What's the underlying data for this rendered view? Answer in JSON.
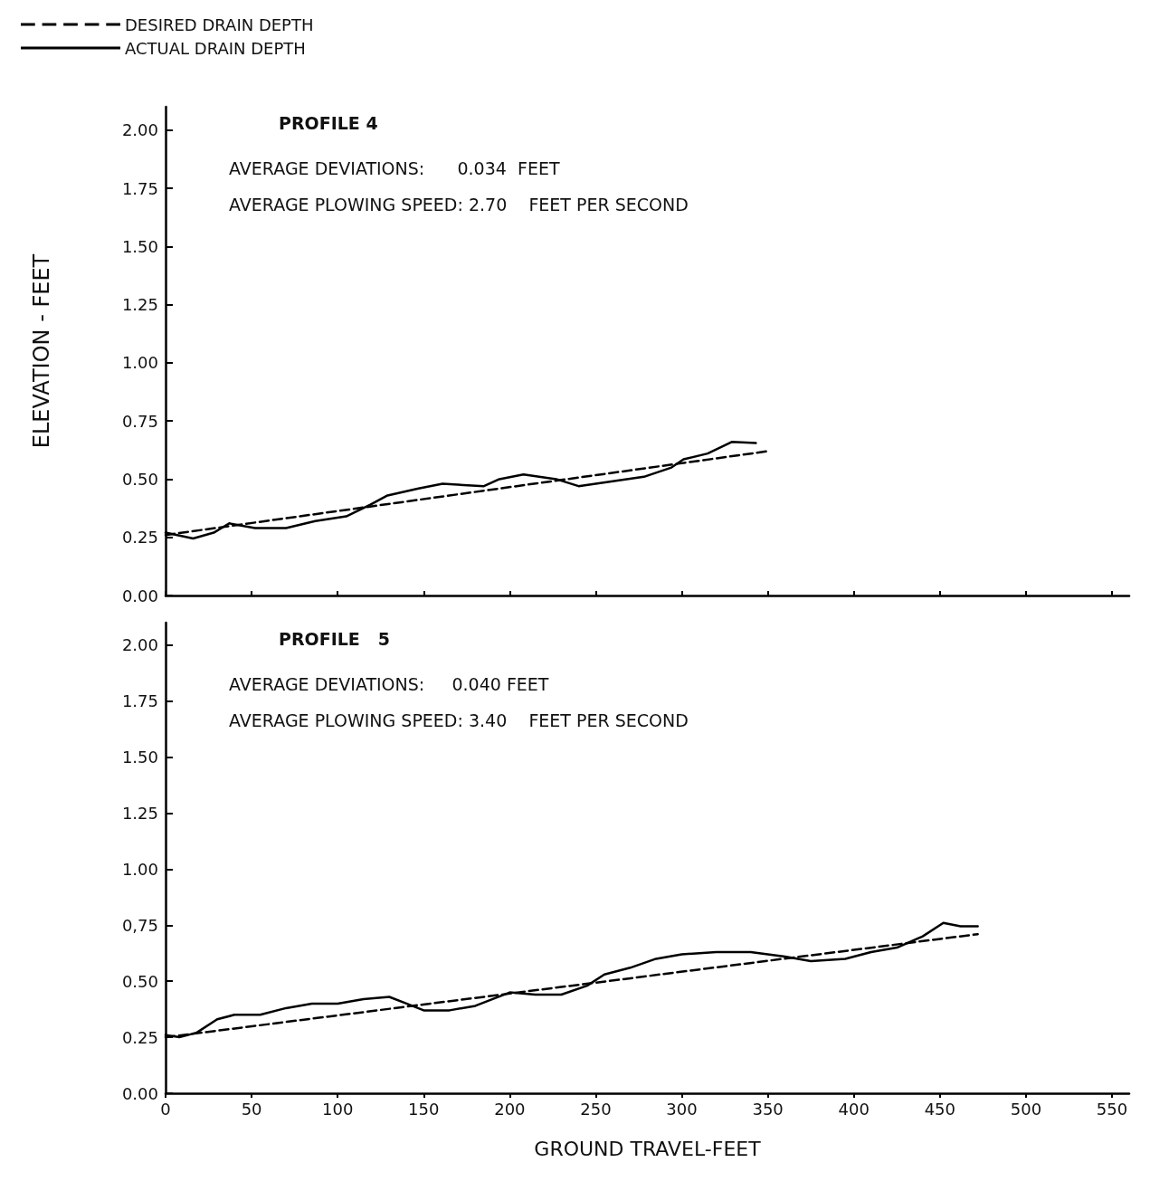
{
  "chart_data": [
    {
      "type": "line",
      "annotations": [
        "PROFILE 4",
        "AVERAGE DEVIATIONS:      0.034  FEET",
        "AVERAGE PLOWING SPEED: 2.70    FEET PER SECOND"
      ],
      "ylabel": "ELEVATION - FEET",
      "legend": "top left",
      "tick_labels": "y",
      "grid": false,
      "marker": "none",
      "xlim": [
        0,
        560
      ],
      "xticks": [
        0,
        50,
        100,
        150,
        200,
        250,
        300,
        350,
        400,
        450,
        500,
        550
      ],
      "ylim": [
        0,
        2.1
      ],
      "yticks": [
        {
          "value": 0,
          "label": "0.00"
        },
        {
          "value": 0.25,
          "label": "0.25"
        },
        {
          "value": 0.5,
          "label": "0.50"
        },
        {
          "value": 0.75,
          "label": "0.75"
        },
        {
          "value": 1,
          "label": "1.00"
        },
        {
          "value": 1.25,
          "label": "1.25"
        },
        {
          "value": 1.5,
          "label": "1.50"
        },
        {
          "value": 1.75,
          "label": "1.75"
        },
        {
          "value": 2,
          "label": "2.00"
        }
      ],
      "series": [
        {
          "name": "DESIRED DRAIN DEPTH",
          "color": "#000000",
          "line_style": "dashed",
          "x": [
            0,
            350
          ],
          "values": [
            0.26,
            0.62
          ]
        },
        {
          "name": "ACTUAL DRAIN DEPTH",
          "color": "#000000",
          "line_style": "solid",
          "x": [
            0,
            16,
            28,
            37,
            52,
            70,
            87,
            105,
            119,
            129,
            147,
            161,
            185,
            194,
            208,
            227,
            240,
            259,
            278,
            294,
            301,
            315,
            329,
            343
          ],
          "values": [
            0.27,
            0.245,
            0.27,
            0.31,
            0.29,
            0.29,
            0.32,
            0.34,
            0.39,
            0.43,
            0.46,
            0.48,
            0.47,
            0.5,
            0.52,
            0.5,
            0.47,
            0.49,
            0.51,
            0.55,
            0.585,
            0.61,
            0.66,
            0.655
          ]
        }
      ]
    },
    {
      "type": "line",
      "annotations": [
        "PROFILE   5",
        "AVERAGE DEVIATIONS:     0.040 FEET",
        "AVERAGE PLOWING SPEED: 3.40    FEET PER SECOND"
      ],
      "xlabel": "GROUND TRAVEL-FEET",
      "grid": false,
      "marker": "none",
      "xlim": [
        0,
        560
      ],
      "xticks": [
        0,
        50,
        100,
        150,
        200,
        250,
        300,
        350,
        400,
        450,
        500,
        550
      ],
      "ylim": [
        0,
        2.1
      ],
      "yticks": [
        {
          "value": 0,
          "label": "0.00"
        },
        0.25,
        {
          "value": 0.5,
          "label": "0.50"
        },
        {
          "value": 0.75,
          "label": "0,75"
        },
        {
          "value": 1,
          "label": "1.00"
        },
        {
          "value": 1.25,
          "label": "1.25"
        },
        {
          "value": 1.5,
          "label": "1.50"
        },
        {
          "value": 1.75,
          "label": "1.75"
        },
        {
          "value": 2,
          "label": "2.00"
        }
      ],
      "series": [
        {
          "color": "#000000",
          "line_style": "dashed",
          "x": [
            0,
            472
          ],
          "values": [
            0.25,
            0.71
          ]
        },
        {
          "color": "#000000",
          "line_style": "solid",
          "x": [
            0,
            8,
            18,
            30,
            40,
            55,
            70,
            85,
            100,
            115,
            130,
            140,
            150,
            165,
            180,
            200,
            215,
            230,
            245,
            255,
            270,
            285,
            300,
            320,
            340,
            360,
            375,
            395,
            410,
            425,
            440,
            452,
            462,
            472
          ],
          "values": [
            0.26,
            0.25,
            0.27,
            0.33,
            0.35,
            0.35,
            0.38,
            0.4,
            0.4,
            0.42,
            0.43,
            0.4,
            0.37,
            0.37,
            0.39,
            0.45,
            0.44,
            0.44,
            0.48,
            0.53,
            0.56,
            0.6,
            0.62,
            0.63,
            0.63,
            0.61,
            0.59,
            0.6,
            0.63,
            0.65,
            0.7,
            0.76,
            0.745,
            0.745
          ]
        }
      ]
    }
  ]
}
